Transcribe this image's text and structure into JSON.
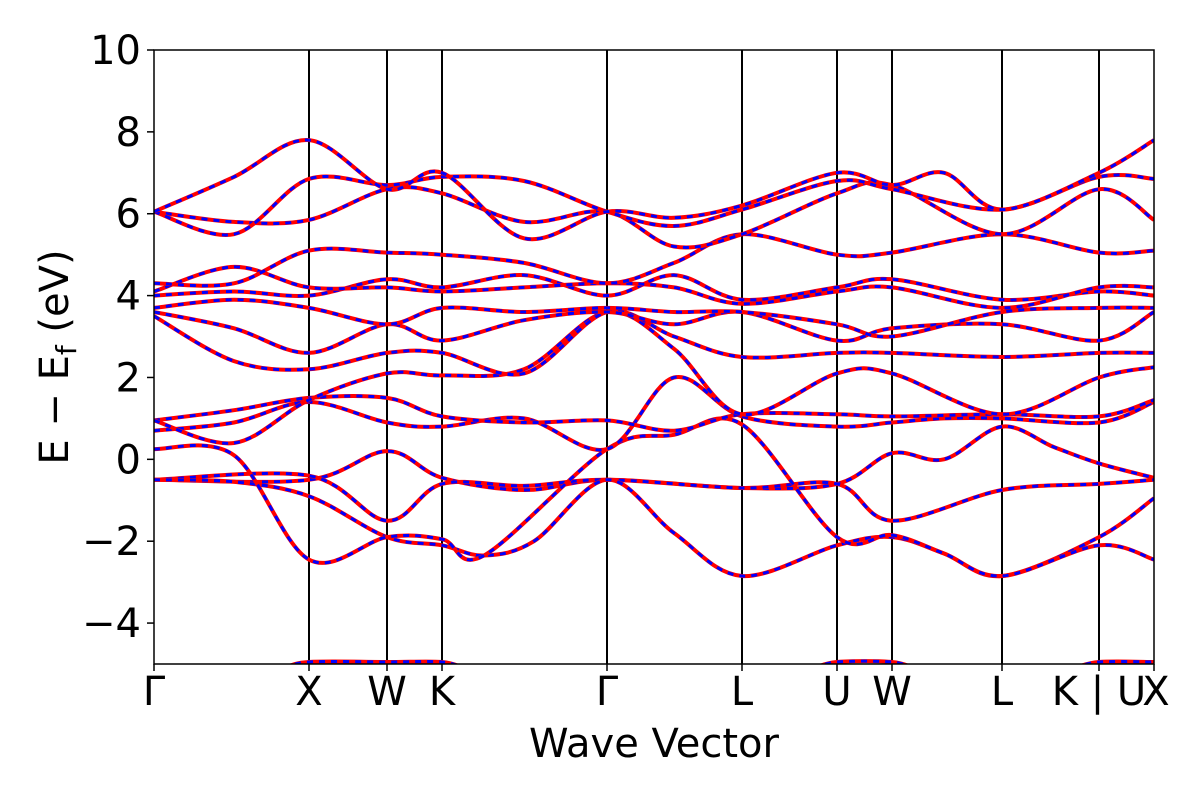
{
  "chart_data": {
    "type": "line",
    "title": "",
    "xlabel": "Wave Vector",
    "ylabel": "E − E",
    "ylabel_subscript": "f",
    "ylabel_unit": " (eV)",
    "ylim": [
      -5,
      10
    ],
    "yticks": [
      -4,
      -2,
      0,
      2,
      4,
      6,
      8,
      10
    ],
    "ytick_labels": [
      "−4",
      "−2",
      "0",
      "2",
      "4",
      "6",
      "8",
      "10"
    ],
    "xlim": [
      0,
      1
    ],
    "high_symmetry_points": [
      {
        "label": "Γ",
        "x": 0.0
      },
      {
        "label": "X",
        "x": 0.155
      },
      {
        "label": "W",
        "x": 0.233
      },
      {
        "label": "K",
        "x": 0.288
      },
      {
        "label": "Γ",
        "x": 0.453
      },
      {
        "label": "L",
        "x": 0.588
      },
      {
        "label": "U",
        "x": 0.683
      },
      {
        "label": "W",
        "x": 0.738
      },
      {
        "label": "L",
        "x": 0.848
      },
      {
        "label": "K | U",
        "x": 0.945
      },
      {
        "label": "X",
        "x": 1.0
      }
    ],
    "grid": false,
    "line_styles": {
      "solid_color": "#ff0000",
      "dashed_color": "#0000ff"
    },
    "series": [
      {
        "points": [
          [
            0,
            -0.5
          ],
          [
            0.155,
            -0.5
          ],
          [
            0.233,
            0.2
          ],
          [
            0.288,
            -0.45
          ],
          [
            0.37,
            -0.75
          ],
          [
            0.453,
            -0.5
          ],
          [
            0.588,
            -0.7
          ],
          [
            0.683,
            -0.6
          ],
          [
            0.738,
            0.15
          ],
          [
            0.79,
            0.0
          ],
          [
            0.848,
            0.8
          ],
          [
            0.9,
            0.3
          ],
          [
            0.945,
            -0.1
          ],
          [
            1,
            -0.45
          ]
        ]
      },
      {
        "points": [
          [
            0,
            -0.5
          ],
          [
            0.155,
            -0.4
          ],
          [
            0.233,
            -1.5
          ],
          [
            0.288,
            -0.6
          ],
          [
            0.37,
            -0.65
          ],
          [
            0.453,
            -0.5
          ],
          [
            0.588,
            -0.7
          ],
          [
            0.683,
            -0.6
          ],
          [
            0.738,
            -1.5
          ],
          [
            0.848,
            -0.75
          ],
          [
            0.945,
            -0.6
          ],
          [
            1,
            -0.5
          ]
        ]
      },
      {
        "points": [
          [
            0,
            -0.5
          ],
          [
            0.08,
            -0.55
          ],
          [
            0.155,
            -0.9
          ],
          [
            0.233,
            -1.9
          ],
          [
            0.288,
            -2.1
          ],
          [
            0.33,
            -2.35
          ],
          [
            0.38,
            -2.0
          ],
          [
            0.453,
            -0.5
          ],
          [
            0.52,
            -1.8
          ],
          [
            0.588,
            -2.85
          ],
          [
            0.683,
            -2.1
          ],
          [
            0.738,
            -1.9
          ],
          [
            0.79,
            -2.3
          ],
          [
            0.848,
            -2.85
          ],
          [
            0.945,
            -1.9
          ],
          [
            1,
            -0.95
          ]
        ]
      },
      {
        "points": [
          [
            0,
            0.25
          ],
          [
            0.08,
            0.1
          ],
          [
            0.155,
            -2.45
          ],
          [
            0.233,
            -1.9
          ],
          [
            0.288,
            -1.95
          ],
          [
            0.33,
            -2.35
          ],
          [
            0.453,
            0.25
          ],
          [
            0.52,
            0.6
          ],
          [
            0.588,
            0.85
          ],
          [
            0.683,
            -1.9
          ],
          [
            0.738,
            -1.85
          ],
          [
            0.79,
            -2.3
          ],
          [
            0.848,
            -2.85
          ],
          [
            0.945,
            -2.1
          ],
          [
            1,
            -2.45
          ]
        ]
      },
      {
        "points": [
          [
            0,
            0.7
          ],
          [
            0.08,
            0.9
          ],
          [
            0.155,
            1.4
          ],
          [
            0.233,
            0.9
          ],
          [
            0.288,
            0.8
          ],
          [
            0.37,
            1.0
          ],
          [
            0.453,
            0.25
          ],
          [
            0.52,
            2.0
          ],
          [
            0.588,
            1.05
          ],
          [
            0.683,
            0.8
          ],
          [
            0.738,
            0.9
          ],
          [
            0.79,
            1.0
          ],
          [
            0.848,
            1.0
          ],
          [
            0.945,
            0.9
          ],
          [
            1,
            1.4
          ]
        ]
      },
      {
        "points": [
          [
            0,
            0.95
          ],
          [
            0.08,
            1.2
          ],
          [
            0.155,
            1.5
          ],
          [
            0.233,
            1.5
          ],
          [
            0.288,
            1.05
          ],
          [
            0.37,
            0.9
          ],
          [
            0.453,
            0.95
          ],
          [
            0.52,
            0.7
          ],
          [
            0.588,
            1.1
          ],
          [
            0.683,
            1.1
          ],
          [
            0.738,
            1.05
          ],
          [
            0.848,
            1.1
          ],
          [
            0.945,
            1.05
          ],
          [
            1,
            1.45
          ]
        ]
      },
      {
        "points": [
          [
            0,
            0.95
          ],
          [
            0.08,
            0.4
          ],
          [
            0.155,
            1.45
          ],
          [
            0.233,
            2.1
          ],
          [
            0.288,
            2.05
          ],
          [
            0.37,
            2.2
          ],
          [
            0.453,
            3.6
          ],
          [
            0.52,
            2.7
          ],
          [
            0.588,
            1.1
          ],
          [
            0.683,
            2.1
          ],
          [
            0.738,
            2.1
          ],
          [
            0.848,
            1.1
          ],
          [
            0.945,
            2.0
          ],
          [
            1,
            2.25
          ]
        ]
      },
      {
        "points": [
          [
            0,
            3.5
          ],
          [
            0.08,
            2.4
          ],
          [
            0.155,
            2.2
          ],
          [
            0.233,
            2.6
          ],
          [
            0.288,
            2.6
          ],
          [
            0.37,
            2.1
          ],
          [
            0.453,
            3.6
          ],
          [
            0.52,
            3.0
          ],
          [
            0.588,
            2.5
          ],
          [
            0.683,
            2.6
          ],
          [
            0.738,
            2.6
          ],
          [
            0.848,
            2.5
          ],
          [
            0.945,
            2.6
          ],
          [
            1,
            2.6
          ]
        ]
      },
      {
        "points": [
          [
            0,
            3.6
          ],
          [
            0.08,
            3.2
          ],
          [
            0.155,
            2.6
          ],
          [
            0.233,
            3.3
          ],
          [
            0.288,
            2.9
          ],
          [
            0.37,
            3.4
          ],
          [
            0.453,
            3.6
          ],
          [
            0.52,
            3.3
          ],
          [
            0.588,
            3.6
          ],
          [
            0.683,
            2.9
          ],
          [
            0.738,
            3.2
          ],
          [
            0.848,
            3.3
          ],
          [
            0.945,
            2.9
          ],
          [
            1,
            3.6
          ]
        ]
      },
      {
        "points": [
          [
            0,
            3.7
          ],
          [
            0.08,
            3.9
          ],
          [
            0.155,
            3.7
          ],
          [
            0.233,
            3.3
          ],
          [
            0.288,
            3.7
          ],
          [
            0.37,
            3.6
          ],
          [
            0.453,
            3.7
          ],
          [
            0.52,
            3.6
          ],
          [
            0.588,
            3.6
          ],
          [
            0.683,
            3.3
          ],
          [
            0.738,
            3.0
          ],
          [
            0.848,
            3.6
          ],
          [
            0.945,
            3.7
          ],
          [
            1,
            3.7
          ]
        ]
      },
      {
        "points": [
          [
            0,
            4.0
          ],
          [
            0.08,
            4.1
          ],
          [
            0.155,
            4.0
          ],
          [
            0.233,
            4.4
          ],
          [
            0.288,
            4.2
          ],
          [
            0.37,
            4.5
          ],
          [
            0.453,
            4.0
          ],
          [
            0.52,
            4.5
          ],
          [
            0.588,
            3.9
          ],
          [
            0.683,
            4.2
          ],
          [
            0.738,
            4.4
          ],
          [
            0.848,
            3.9
          ],
          [
            0.945,
            4.1
          ],
          [
            1,
            4.0
          ]
        ]
      },
      {
        "points": [
          [
            0,
            4.1
          ],
          [
            0.08,
            4.7
          ],
          [
            0.155,
            4.2
          ],
          [
            0.233,
            4.2
          ],
          [
            0.288,
            4.1
          ],
          [
            0.37,
            4.2
          ],
          [
            0.453,
            4.3
          ],
          [
            0.52,
            4.2
          ],
          [
            0.588,
            3.8
          ],
          [
            0.683,
            4.1
          ],
          [
            0.738,
            4.2
          ],
          [
            0.848,
            3.7
          ],
          [
            0.945,
            4.2
          ],
          [
            1,
            4.2
          ]
        ]
      },
      {
        "points": [
          [
            0,
            4.3
          ],
          [
            0.08,
            4.3
          ],
          [
            0.155,
            5.1
          ],
          [
            0.233,
            5.05
          ],
          [
            0.288,
            5.0
          ],
          [
            0.37,
            4.8
          ],
          [
            0.453,
            4.3
          ],
          [
            0.52,
            4.8
          ],
          [
            0.588,
            5.5
          ],
          [
            0.683,
            5.0
          ],
          [
            0.738,
            5.05
          ],
          [
            0.848,
            5.5
          ],
          [
            0.945,
            5.05
          ],
          [
            1,
            5.1
          ]
        ]
      },
      {
        "points": [
          [
            0,
            6.05
          ],
          [
            0.08,
            5.8
          ],
          [
            0.155,
            5.85
          ],
          [
            0.233,
            6.6
          ],
          [
            0.288,
            6.5
          ],
          [
            0.37,
            5.8
          ],
          [
            0.453,
            6.05
          ],
          [
            0.52,
            5.2
          ],
          [
            0.588,
            5.5
          ],
          [
            0.683,
            6.5
          ],
          [
            0.738,
            6.7
          ],
          [
            0.848,
            5.5
          ],
          [
            0.945,
            6.6
          ],
          [
            1,
            5.85
          ]
        ]
      },
      {
        "points": [
          [
            0,
            6.05
          ],
          [
            0.08,
            5.5
          ],
          [
            0.155,
            6.85
          ],
          [
            0.233,
            6.7
          ],
          [
            0.288,
            6.9
          ],
          [
            0.37,
            6.8
          ],
          [
            0.453,
            6.05
          ],
          [
            0.52,
            5.7
          ],
          [
            0.588,
            6.1
          ],
          [
            0.683,
            6.8
          ],
          [
            0.738,
            6.6
          ],
          [
            0.848,
            6.1
          ],
          [
            0.945,
            6.9
          ],
          [
            1,
            6.85
          ]
        ]
      },
      {
        "points": [
          [
            0,
            6.05
          ],
          [
            0.08,
            6.9
          ],
          [
            0.155,
            7.8
          ],
          [
            0.233,
            6.6
          ],
          [
            0.288,
            7.0
          ],
          [
            0.37,
            5.4
          ],
          [
            0.453,
            6.05
          ],
          [
            0.52,
            5.9
          ],
          [
            0.588,
            6.2
          ],
          [
            0.683,
            7.0
          ],
          [
            0.738,
            6.7
          ],
          [
            0.79,
            7.0
          ],
          [
            0.848,
            6.1
          ],
          [
            0.945,
            7.0
          ],
          [
            1,
            7.8
          ]
        ]
      },
      {
        "points": [
          [
            0.13,
            -5.1
          ],
          [
            0.155,
            -4.95
          ],
          [
            0.233,
            -4.95
          ],
          [
            0.288,
            -4.95
          ],
          [
            0.31,
            -5.1
          ]
        ]
      },
      {
        "points": [
          [
            0.66,
            -5.1
          ],
          [
            0.683,
            -4.95
          ],
          [
            0.738,
            -4.95
          ],
          [
            0.76,
            -5.1
          ]
        ]
      },
      {
        "points": [
          [
            0.92,
            -5.1
          ],
          [
            0.945,
            -4.95
          ],
          [
            1,
            -4.95
          ]
        ]
      }
    ]
  }
}
